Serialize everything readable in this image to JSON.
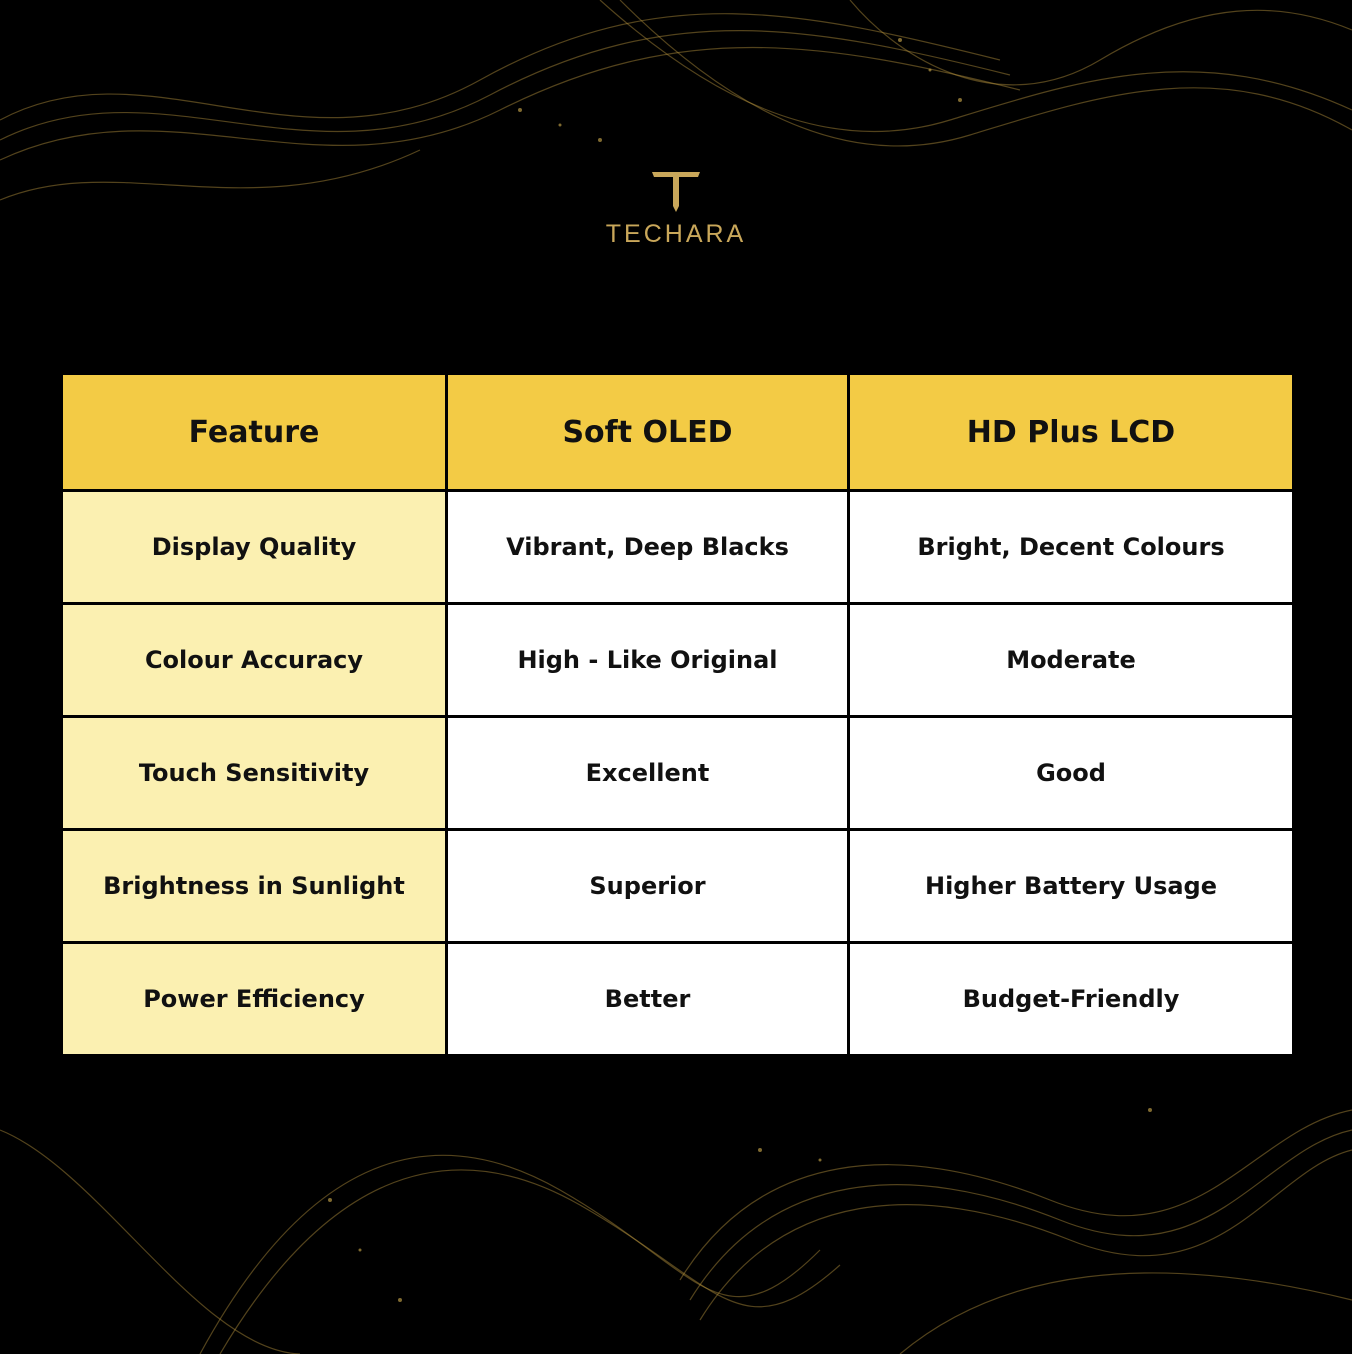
{
  "brand": {
    "name": "TECHARA",
    "color": "#c9a75a"
  },
  "colors": {
    "header_bg": "#f3cb45",
    "feature_col_bg": "#fbf0b1",
    "cell_bg": "#ffffff",
    "background": "#000000"
  },
  "table": {
    "headers": [
      "Feature",
      "Soft OLED",
      "HD Plus LCD"
    ],
    "rows": [
      [
        "Display Quality",
        "Vibrant, Deep Blacks",
        "Bright, Decent Colours"
      ],
      [
        "Colour Accuracy",
        "High - Like Original",
        "Moderate"
      ],
      [
        "Touch Sensitivity",
        "Excellent",
        "Good"
      ],
      [
        "Brightness in Sunlight",
        "Superior",
        "Higher Battery Usage"
      ],
      [
        "Power Efficiency",
        "Better",
        "Budget-Friendly"
      ]
    ]
  }
}
